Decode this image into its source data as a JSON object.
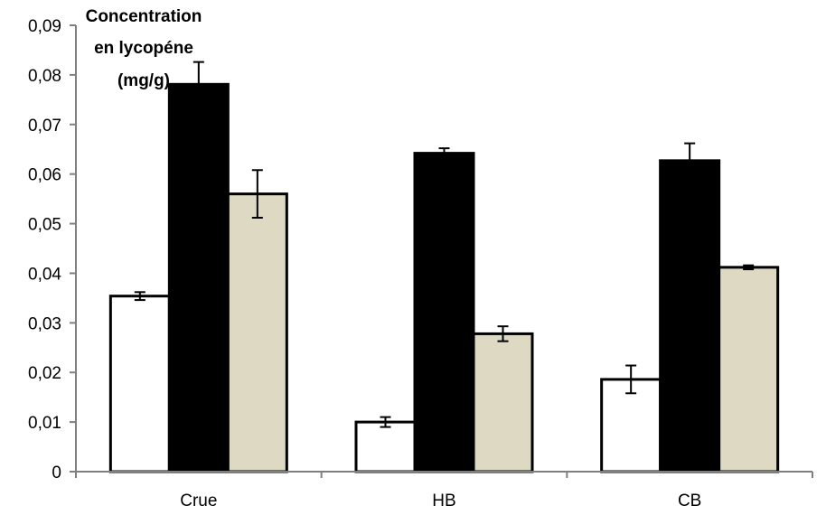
{
  "chart_data": {
    "type": "bar",
    "categories": [
      "Crue",
      "HB",
      "CB"
    ],
    "ylabel_lines": [
      "Concentration",
      "en lycopéne",
      "(mg/g)"
    ],
    "xlabel": "",
    "ylim": [
      0,
      0.09
    ],
    "yticks": [
      "0",
      "0,01",
      "0,02",
      "0,03",
      "0,04",
      "0,05",
      "0,06",
      "0,07",
      "0,08",
      "0,09"
    ],
    "grid": false,
    "series": [
      {
        "color": "#ffffff",
        "values": [
          0.0354,
          0.01,
          0.0186
        ],
        "errors": [
          0.0008,
          0.001,
          0.0028
        ]
      },
      {
        "color": "#000000",
        "values": [
          0.0781,
          0.0642,
          0.0627
        ],
        "errors": [
          0.0045,
          0.001,
          0.0035
        ]
      },
      {
        "color": "#ddd9c3",
        "values": [
          0.056,
          0.0278,
          0.0412
        ],
        "errors": [
          0.0048,
          0.0015,
          0.0004
        ]
      }
    ]
  }
}
